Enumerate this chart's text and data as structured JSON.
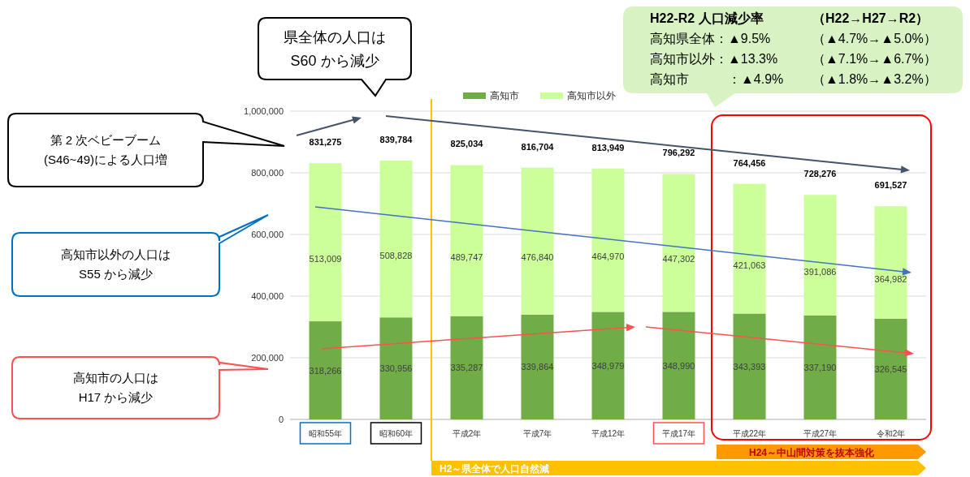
{
  "chart_data": {
    "type": "bar",
    "stacked": true,
    "categories": [
      "昭和55年",
      "昭和60年",
      "平成2年",
      "平成7年",
      "平成12年",
      "平成17年",
      "平成22年",
      "平成27年",
      "令和2年"
    ],
    "series": [
      {
        "name": "高知市",
        "color": "#70ad47",
        "values": [
          318266,
          330956,
          335287,
          339864,
          348979,
          348990,
          343393,
          337190,
          326545
        ],
        "value_labels": [
          "318,266",
          "330,956",
          "335,287",
          "339,864",
          "348,979",
          "348,990",
          "343,393",
          "337,190",
          "326,545"
        ]
      },
      {
        "name": "高知市以外",
        "color": "#ccff99",
        "values": [
          513009,
          508828,
          489747,
          476840,
          464970,
          447302,
          421063,
          391086,
          364982
        ],
        "value_labels": [
          "513,009",
          "508,828",
          "489,747",
          "476,840",
          "464,970",
          "447,302",
          "421,063",
          "391,086",
          "364,982"
        ]
      }
    ],
    "totals": [
      "831,275",
      "839,784",
      "825,034",
      "816,704",
      "813,949",
      "796,292",
      "764,456",
      "728,276",
      "691,527"
    ],
    "ylim": [
      0,
      1000000
    ],
    "yticks": [
      {
        "value": 0,
        "label": "0"
      },
      {
        "value": 200000,
        "label": "200,000"
      },
      {
        "value": 400000,
        "label": "400,000"
      },
      {
        "value": 600000,
        "label": "600,000"
      },
      {
        "value": 800000,
        "label": "800,000"
      },
      {
        "value": 1000000,
        "label": "1,000,000"
      }
    ],
    "grid": "y",
    "legend": "top",
    "ref_lines": [
      {
        "axis": "x",
        "value": "平成2年",
        "label": "H2～県全体で人口自然減",
        "color": "#ffc000"
      }
    ],
    "annotations": [
      "県全体の人口は\nS60 から減少",
      "第 2 次ベビーブーム\n(S46~49)による人口増",
      "高知市以外の人口は\nS55 から減少",
      "高知市の人口は\nH17 から減少",
      "H22-R2 人口減少率",
      "（H22→H27→R2）",
      "高知県全体：▲9.5%",
      "（▲4.7%→▲5.0%）",
      "高知市以外：▲13.3%",
      "（▲7.1%→▲6.7%）",
      "高知市　　　：▲4.9%",
      "（▲1.8%→▲3.2%）",
      "H24～中山間対策を抜本強化"
    ]
  }
}
